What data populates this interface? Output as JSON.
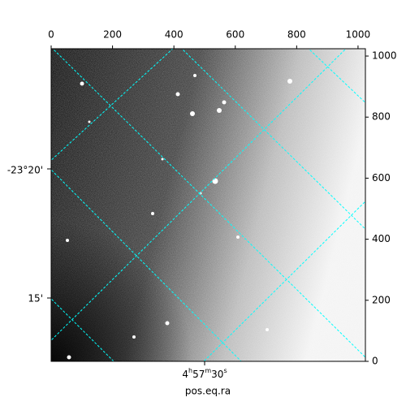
{
  "chart_data": {
    "type": "image",
    "xlim": [
      0,
      1024
    ],
    "xticks": [
      0,
      200,
      400,
      600,
      800,
      1000
    ],
    "ylim": [
      0,
      1024
    ],
    "yticks": [
      0,
      200,
      400,
      600,
      800,
      1000
    ],
    "dec_labels": [
      "-23°20'",
      "15'"
    ],
    "ra_labels": [
      "4h57m30s"
    ],
    "xlabel": "pos.eq.ra",
    "grid_color": "#00ffff"
  }
}
